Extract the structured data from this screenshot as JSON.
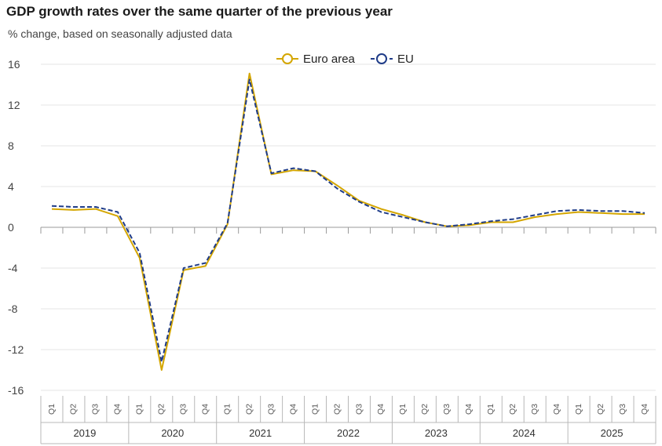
{
  "chart_data": {
    "type": "line",
    "title": "GDP growth rates over the same quarter of the previous year",
    "subtitle": "% change, based on seasonally adjusted data",
    "ylim": [
      -16,
      16
    ],
    "yticks": [
      16,
      12,
      8,
      4,
      0,
      -4,
      -8,
      -12,
      -16
    ],
    "legend_position": "top-center",
    "grid": true,
    "x": [
      "2019Q1",
      "2019Q2",
      "2019Q3",
      "2019Q4",
      "2020Q1",
      "2020Q2",
      "2020Q3",
      "2020Q4",
      "2021Q1",
      "2021Q2",
      "2021Q3",
      "2021Q4",
      "2022Q1",
      "2022Q2",
      "2022Q3",
      "2022Q4",
      "2023Q1",
      "2023Q2",
      "2023Q3",
      "2023Q4",
      "2024Q1",
      "2024Q2",
      "2024Q3",
      "2024Q4",
      "2025Q1",
      "2025Q2",
      "2025Q3",
      "2025Q4"
    ],
    "quarters": [
      "Q1",
      "Q2",
      "Q3",
      "Q4"
    ],
    "years": [
      "2019",
      "2020",
      "2021",
      "2022",
      "2023",
      "2024",
      "2025"
    ],
    "series": [
      {
        "name": "Euro area",
        "color": "#d4a600",
        "dash": false,
        "values": [
          1.8,
          1.7,
          1.8,
          1.1,
          -3.0,
          -14.0,
          -4.2,
          -3.8,
          0.3,
          15.1,
          5.2,
          5.6,
          5.5,
          4.1,
          2.6,
          1.8,
          1.2,
          0.5,
          0.1,
          0.2,
          0.5,
          0.5,
          1.0,
          1.3,
          1.5,
          1.4,
          1.3,
          1.3
        ]
      },
      {
        "name": "EU",
        "color": "#1f3c88",
        "dash": true,
        "values": [
          2.1,
          2.0,
          2.0,
          1.5,
          -2.5,
          -13.2,
          -4.0,
          -3.5,
          0.4,
          14.5,
          5.3,
          5.8,
          5.5,
          3.8,
          2.5,
          1.5,
          1.0,
          0.5,
          0.1,
          0.3,
          0.6,
          0.8,
          1.2,
          1.6,
          1.7,
          1.6,
          1.6,
          1.4
        ]
      }
    ]
  }
}
